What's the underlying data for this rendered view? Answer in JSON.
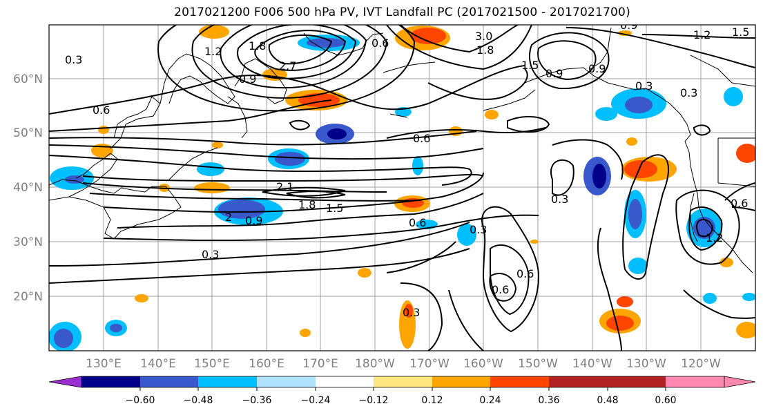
{
  "title": "2017021200 F006 500 hPa PV, IVT Landfall PC (2017021500 - 2017021700)",
  "map": {
    "lat_labels": [
      "60°N",
      "50°N",
      "40°N",
      "30°N",
      "20°N"
    ],
    "lon_labels": [
      "130°E",
      "140°E",
      "150°E",
      "160°E",
      "170°E",
      "180°W",
      "170°W",
      "160°W",
      "150°W",
      "140°W",
      "130°W",
      "120°W"
    ],
    "grid": true,
    "axis_label_color": "#808080",
    "contour_labels": [
      {
        "text": "0.3"
      },
      {
        "text": "1.2"
      },
      {
        "text": "1.8"
      },
      {
        "text": "0.9"
      },
      {
        "text": "0.6"
      },
      {
        "text": "2.7"
      },
      {
        "text": "3.0"
      },
      {
        "text": "1.8"
      },
      {
        "text": "1.5"
      },
      {
        "text": "0.9"
      },
      {
        "text": "1.2"
      },
      {
        "text": "0.9"
      },
      {
        "text": "0.3"
      },
      {
        "text": "0.3"
      },
      {
        "text": "0.6"
      },
      {
        "text": "0.6"
      },
      {
        "text": "2.1"
      },
      {
        "text": "1.8"
      },
      {
        "text": "1.5"
      },
      {
        "text": "2"
      },
      {
        "text": "0.9"
      },
      {
        "text": "0.6"
      },
      {
        "text": "0.3"
      },
      {
        "text": "0.3"
      },
      {
        "text": "0.3"
      },
      {
        "text": "0.6"
      },
      {
        "text": "0.6"
      },
      {
        "text": "0.3"
      },
      {
        "text": "0.6"
      },
      {
        "text": "1.2"
      },
      {
        "text": "0.9"
      },
      {
        "text": "1.5"
      }
    ]
  },
  "colorbar": {
    "ticks": [
      "−0.60",
      "−0.48",
      "−0.36",
      "−0.24",
      "−0.12",
      "0.12",
      "0.24",
      "0.36",
      "0.48",
      "0.60"
    ],
    "colors": {
      "under": "#9b30d0",
      "bins": [
        "#00008b",
        "#3858cc",
        "#00bfff",
        "#b0e2ff",
        "#ffffff",
        "#ffe680",
        "#ffa500",
        "#ff4500",
        "#b22222"
      ],
      "over": "#ff88b0"
    }
  }
}
